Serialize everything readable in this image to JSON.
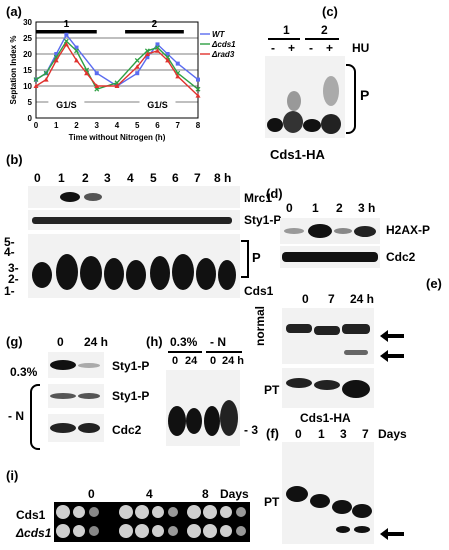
{
  "panels": {
    "a": "(a)",
    "b": "(b)",
    "c": "(c)",
    "d": "(d)",
    "e": "(e)",
    "f": "(f)",
    "g": "(g)",
    "h": "(h)",
    "i": "(i)"
  },
  "chart_data": {
    "type": "line",
    "xlabel": "Time without Nitrogen (h)",
    "ylabel": "Septation Index %",
    "xlim": [
      0,
      8
    ],
    "ylim": [
      0,
      30
    ],
    "xticks": [
      "0",
      "1",
      "2",
      "3",
      "4",
      "5",
      "6",
      "7",
      "8"
    ],
    "yticks": [
      "0",
      "5",
      "10",
      "15",
      "20",
      "25",
      "30"
    ],
    "bars": [
      {
        "label": "1"
      },
      {
        "label": "2"
      }
    ],
    "phase_labels": [
      "G1/S",
      "G1/S"
    ],
    "legend_position": "top-right",
    "series": [
      {
        "name": "WT",
        "color": "#5b6cf0",
        "marker": "square",
        "x": [
          0,
          0.5,
          1,
          1.5,
          2,
          3,
          4,
          5,
          5.5,
          6,
          6.5,
          7,
          8
        ],
        "y": [
          12,
          14,
          20,
          26,
          22,
          14,
          10,
          14,
          19,
          23,
          20,
          17,
          12
        ]
      },
      {
        "name": "Δcds1",
        "color": "#2ea043",
        "marker": "x",
        "x": [
          0,
          0.5,
          1,
          1.5,
          2,
          2.5,
          3,
          4,
          5,
          5.5,
          6,
          6.5,
          7,
          8
        ],
        "y": [
          12,
          14,
          19,
          24,
          21,
          15,
          9,
          11,
          18,
          21,
          22,
          19,
          14,
          9
        ]
      },
      {
        "name": "Δrad3",
        "color": "#e0322e",
        "marker": "triangle",
        "x": [
          0,
          0.5,
          1,
          1.5,
          2,
          2.5,
          3,
          4,
          5,
          5.5,
          6,
          6.5,
          7,
          8
        ],
        "y": [
          10,
          12,
          18,
          23,
          18,
          14,
          10,
          10,
          16,
          20,
          21,
          18,
          13,
          7
        ]
      }
    ]
  },
  "b": {
    "times": [
      "0",
      "1",
      "2",
      "3",
      "4",
      "5",
      "6",
      "7",
      "8 h"
    ],
    "labels": [
      "Mrc1",
      "Sty1-P",
      "P",
      "Cds1"
    ],
    "markers": [
      "5-",
      "4-",
      "3-",
      "2-",
      "1-"
    ]
  },
  "c": {
    "lanes": [
      "1",
      "2"
    ],
    "signs": [
      "-",
      "+",
      "-",
      "+"
    ],
    "treatment": "HU",
    "p": "P",
    "caption": "Cds1-HA"
  },
  "d": {
    "times": [
      "0",
      "1",
      "2",
      "3 h"
    ],
    "labels": [
      "H2AX-P",
      "Cdc2"
    ]
  },
  "e": {
    "times": [
      "0",
      "7",
      "24 h"
    ],
    "normal": "normal",
    "pt": "PT",
    "caption": "Cds1-HA"
  },
  "f": {
    "times": [
      "0",
      "1",
      "3",
      "7",
      "Days"
    ],
    "pt": "PT"
  },
  "g": {
    "times": [
      "0",
      "24 h"
    ],
    "conc": "0.3%",
    "minusN": "- N",
    "labels": [
      "Sty1-P",
      "Sty1-P",
      "Cdc2"
    ]
  },
  "h": {
    "groups": [
      "0.3%",
      "- N"
    ],
    "times": [
      "0",
      "24",
      "0",
      "24 h"
    ],
    "marker": "- 3"
  },
  "i": {
    "times": [
      "0",
      "4",
      "8",
      "Days"
    ],
    "strains": [
      "Cds1",
      "Δcds1"
    ]
  }
}
